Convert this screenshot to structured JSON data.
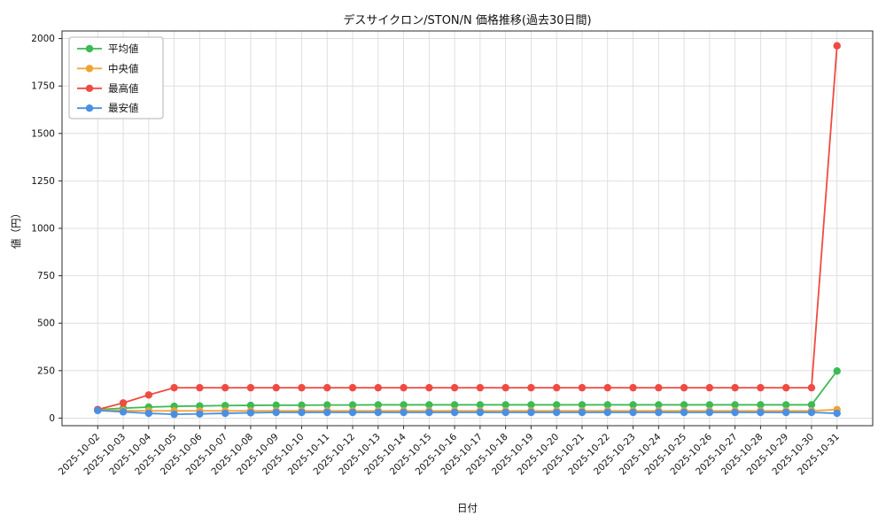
{
  "colors": {
    "grid": "#d9d9d9",
    "spine": "#2b2b2b",
    "text": "#111111",
    "background": "#ffffff",
    "legend_border": "#b3b3b3"
  },
  "chart_data": {
    "type": "line",
    "title": "デスサイクロン/STON/N 価格推移(過去30日間)",
    "xlabel": "日付",
    "ylabel": "値（円）",
    "ylim": [
      0,
      2000
    ],
    "yticks": [
      0,
      250,
      500,
      750,
      1000,
      1250,
      1500,
      1750,
      2000
    ],
    "grid": true,
    "legend_position": "upper left",
    "marker": "circle",
    "categories": [
      "2025-10-02",
      "2025-10-03",
      "2025-10-04",
      "2025-10-05",
      "2025-10-06",
      "2025-10-07",
      "2025-10-08",
      "2025-10-09",
      "2025-10-10",
      "2025-10-11",
      "2025-10-12",
      "2025-10-13",
      "2025-10-14",
      "2025-10-15",
      "2025-10-16",
      "2025-10-17",
      "2025-10-18",
      "2025-10-19",
      "2025-10-20",
      "2025-10-21",
      "2025-10-22",
      "2025-10-23",
      "2025-10-24",
      "2025-10-25",
      "2025-10-26",
      "2025-10-27",
      "2025-10-28",
      "2025-10-29",
      "2025-10-30",
      "2025-10-31"
    ],
    "series": [
      {
        "id": "avg",
        "name": "平均値",
        "color": "#3cba54",
        "values": [
          45,
          52,
          58,
          62,
          64,
          66,
          67,
          68,
          68,
          69,
          69,
          70,
          70,
          70,
          70,
          70,
          70,
          70,
          70,
          70,
          70,
          70,
          70,
          70,
          70,
          70,
          70,
          70,
          70,
          248
        ]
      },
      {
        "id": "median",
        "name": "中央値",
        "color": "#f2a134",
        "values": [
          42,
          40,
          38,
          38,
          38,
          38,
          38,
          38,
          38,
          38,
          38,
          38,
          38,
          38,
          38,
          38,
          38,
          38,
          38,
          38,
          38,
          38,
          38,
          38,
          38,
          38,
          38,
          38,
          38,
          45
        ]
      },
      {
        "id": "max",
        "name": "最高値",
        "color": "#ef4b42",
        "values": [
          45,
          80,
          122,
          160,
          160,
          160,
          160,
          160,
          160,
          160,
          160,
          160,
          160,
          160,
          160,
          160,
          160,
          160,
          160,
          160,
          160,
          160,
          160,
          160,
          160,
          160,
          160,
          160,
          160,
          1962
        ]
      },
      {
        "id": "min",
        "name": "最安値",
        "color": "#4a90e2",
        "values": [
          40,
          33,
          25,
          20,
          22,
          25,
          28,
          30,
          30,
          30,
          30,
          30,
          30,
          30,
          30,
          30,
          30,
          30,
          30,
          30,
          30,
          30,
          30,
          30,
          30,
          30,
          30,
          30,
          30,
          25
        ]
      }
    ]
  }
}
